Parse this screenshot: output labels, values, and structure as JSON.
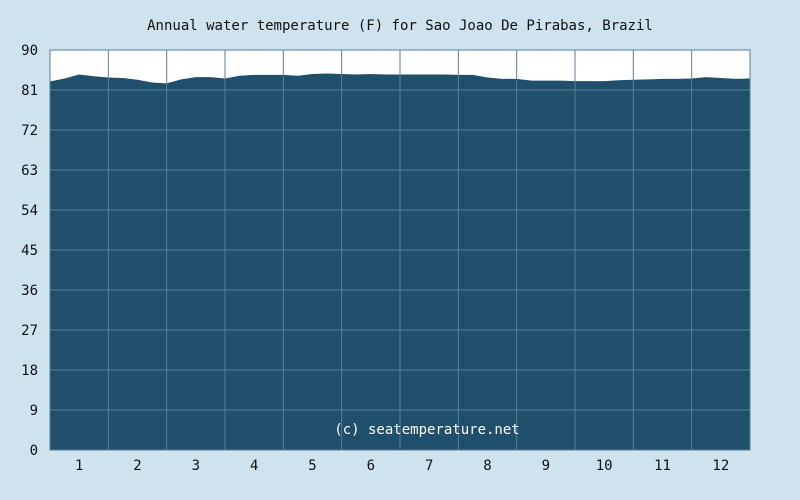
{
  "chart_data": {
    "type": "area",
    "title": "Annual water temperature (F) for Sao Joao De Pirabas, Brazil",
    "xlabel": "",
    "ylabel": "",
    "ylim": [
      0,
      90
    ],
    "yticks": [
      0,
      9,
      18,
      27,
      36,
      45,
      54,
      63,
      72,
      81,
      90
    ],
    "xlim": [
      0,
      12
    ],
    "categories": [
      "1",
      "2",
      "3",
      "4",
      "5",
      "6",
      "7",
      "8",
      "9",
      "10",
      "11",
      "12"
    ],
    "grid": true,
    "series": [
      {
        "x": [
          0,
          0.25,
          0.5,
          0.75,
          1.0,
          1.25,
          1.5,
          1.75,
          2.0,
          2.25,
          2.5,
          2.75,
          3.0,
          3.25,
          3.5,
          3.75,
          4.0,
          4.25,
          4.5,
          4.75,
          5.0,
          5.25,
          5.5,
          5.75,
          6.0,
          6.25,
          6.5,
          6.75,
          7.0,
          7.25,
          7.5,
          7.75,
          8.0,
          8.25,
          8.5,
          8.75,
          9.0,
          9.25,
          9.5,
          9.75,
          10.0,
          10.25,
          10.5,
          10.75,
          11.0,
          11.25,
          11.5,
          11.75,
          12.0
        ],
        "values": [
          82.9,
          83.6,
          84.5,
          84.1,
          83.8,
          83.7,
          83.3,
          82.7,
          82.5,
          83.4,
          83.9,
          83.9,
          83.6,
          84.2,
          84.4,
          84.4,
          84.4,
          84.2,
          84.6,
          84.7,
          84.6,
          84.5,
          84.6,
          84.5,
          84.5,
          84.5,
          84.5,
          84.5,
          84.4,
          84.4,
          83.8,
          83.5,
          83.5,
          83.1,
          83.1,
          83.1,
          83.0,
          83.0,
          83.0,
          83.2,
          83.3,
          83.4,
          83.5,
          83.5,
          83.6,
          83.9,
          83.7,
          83.5,
          83.6
        ]
      }
    ],
    "watermark": "(c) seatemperature.net",
    "colors": {
      "background": "#cfe3ef",
      "plot_background": "#ffffff",
      "area_fill": "#1f4f6b",
      "grid": "#5a7f99",
      "axis_text": "#111111"
    }
  }
}
